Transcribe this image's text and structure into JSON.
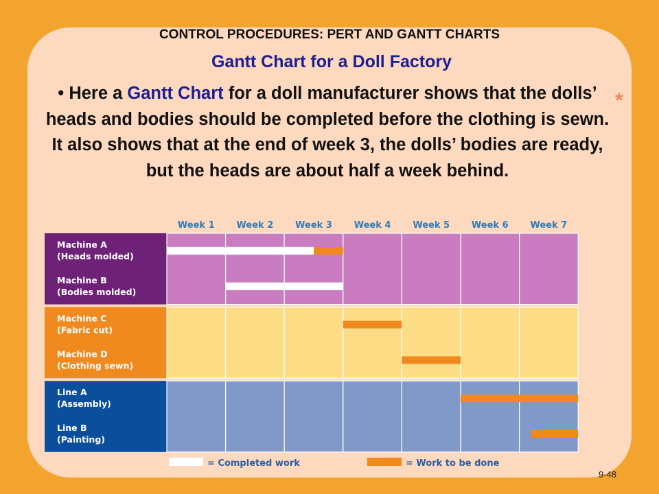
{
  "slide": {
    "header": "CONTROL PROCEDURES: PERT AND GANTT CHARTS",
    "subtitle": "Gantt Chart for a Doll Factory",
    "bullet": "•",
    "body_part1": "Here a ",
    "body_highlight": "Gantt Chart",
    "body_part2": " for a doll manufacturer shows that the dolls’ heads and bodies should be completed before the clothing is sewn.  It also shows that at the end of week 3, the dolls’ bodies are ready, but the heads are about half a week behind.",
    "slide_number": "9-48",
    "star_glyph": "*"
  },
  "colors": {
    "background": "#F3A42F",
    "panel": "#FDD9C0",
    "subtitle": "#1D1E91",
    "completed": "#FFFFFF",
    "to_be_done": "#F08A1E",
    "group_purple_label": "#6E2277",
    "group_purple_cell": "#C97CBF",
    "group_orange_label": "#F08A1E",
    "group_orange_cell": "#FDDC86",
    "group_blue_label": "#0B4F9C",
    "group_blue_cell": "#8099C9"
  },
  "chart_data": {
    "type": "gantt",
    "weeks": [
      "Week 1",
      "Week 2",
      "Week 3",
      "Week 4",
      "Week 5",
      "Week 6",
      "Week 7"
    ],
    "groups": [
      {
        "color": "purple",
        "rows": [
          {
            "label": [
              "Machine A",
              "(Heads molded)"
            ],
            "tasks": [
              {
                "status": "completed",
                "start": 0,
                "end": 2.5
              },
              {
                "status": "to_be_done",
                "start": 2.5,
                "end": 3
              }
            ]
          },
          {
            "label": [
              "Machine B",
              "(Bodies molded)"
            ],
            "tasks": [
              {
                "status": "completed",
                "start": 1,
                "end": 3
              }
            ]
          }
        ]
      },
      {
        "color": "orange",
        "rows": [
          {
            "label": [
              "Machine C",
              "(Fabric cut)"
            ],
            "tasks": [
              {
                "status": "to_be_done",
                "start": 3,
                "end": 4
              }
            ]
          },
          {
            "label": [
              "Machine D",
              "(Clothing sewn)"
            ],
            "tasks": [
              {
                "status": "to_be_done",
                "start": 4,
                "end": 5
              }
            ]
          }
        ]
      },
      {
        "color": "blue",
        "rows": [
          {
            "label": [
              "Line A",
              "(Assembly)"
            ],
            "tasks": [
              {
                "status": "to_be_done",
                "start": 5,
                "end": 7
              }
            ]
          },
          {
            "label": [
              "Line B",
              "(Painting)"
            ],
            "tasks": [
              {
                "status": "to_be_done",
                "start": 6.2,
                "end": 7
              }
            ]
          }
        ]
      }
    ],
    "legend": [
      {
        "status": "completed",
        "label": "= Completed work"
      },
      {
        "status": "to_be_done",
        "label": "= Work to be done"
      }
    ]
  }
}
